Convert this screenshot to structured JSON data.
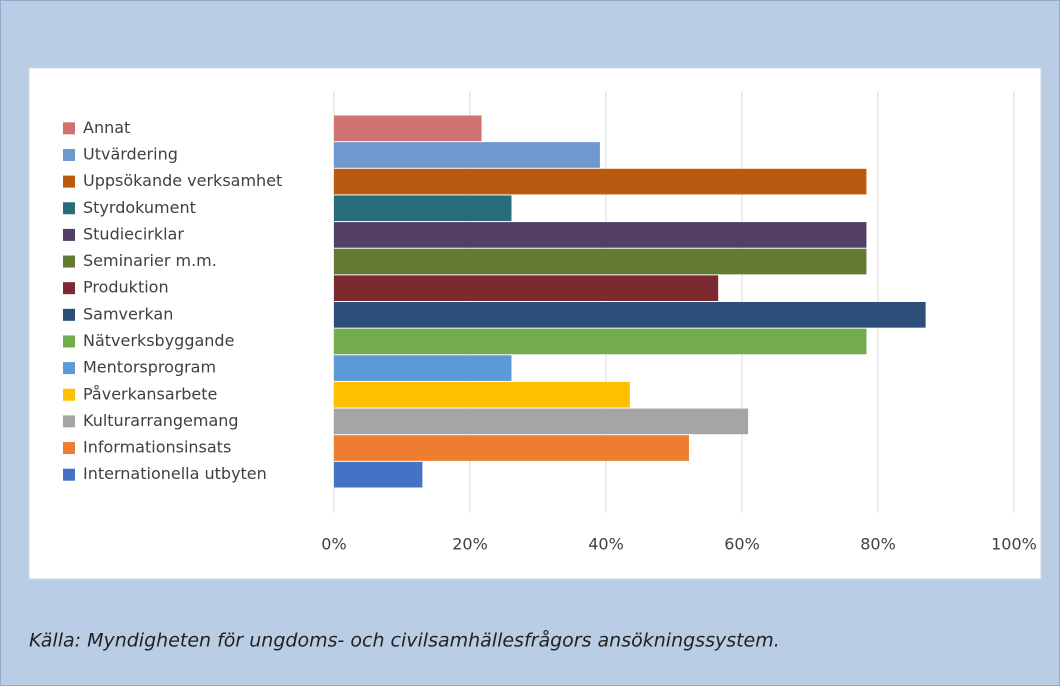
{
  "chart_data": {
    "type": "barh",
    "categories": [
      "Annat",
      "Utvärdering",
      "Uppsökande verksamhet",
      "Styrdokument",
      "Studiecirklar",
      "Seminarier m.m.",
      "Produktion",
      "Samverkan",
      "Nätverksbyggande",
      "Mentorsprogram",
      "Påverkansarbete",
      "Kulturarrangemang",
      "Informationsinsats",
      "Internationella utbyten"
    ],
    "values": [
      21.7,
      39.1,
      78.3,
      26.1,
      78.3,
      78.3,
      56.5,
      87,
      78.3,
      26.1,
      43.5,
      60.9,
      52.2,
      13
    ],
    "colors": [
      "#cf7371",
      "#6f98cf",
      "#b85b10",
      "#276c78",
      "#533f66",
      "#627a32",
      "#7b2b2f",
      "#2c4e78",
      "#72ac4c",
      "#5b9bd5",
      "#ffc000",
      "#a5a5a5",
      "#ed7d31",
      "#4472c4"
    ],
    "xlim": [
      0,
      100
    ],
    "xticks": [
      {
        "value": 0,
        "label": "0%"
      },
      {
        "value": 20,
        "label": "20%"
      },
      {
        "value": 40,
        "label": "40%"
      },
      {
        "value": 60,
        "label": "60%"
      },
      {
        "value": 80,
        "label": "80%"
      },
      {
        "value": 100,
        "label": "100%"
      }
    ],
    "grid": true,
    "source": "Källa: Myndigheten för ungdoms- och civilsamhällesfrågors ansökningssystem."
  }
}
